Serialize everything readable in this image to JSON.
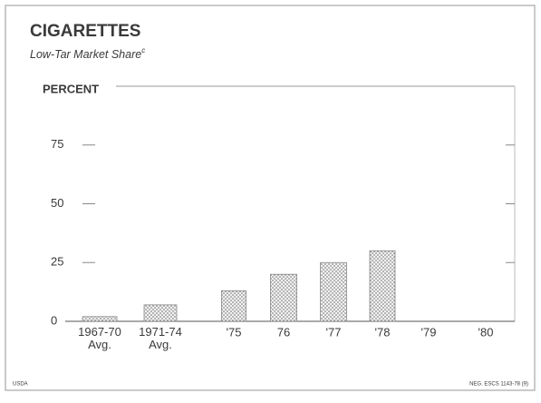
{
  "chart_data": {
    "type": "bar",
    "title": "CIGARETTES",
    "subtitle": "Low-Tar Market Share",
    "subtitle_note": "c",
    "y_axis_label": "PERCENT",
    "categories": [
      "1967-70 Avg.",
      "1971-74 Avg.",
      "'75",
      "76",
      "'77",
      "'78",
      "'79",
      "'80"
    ],
    "values": [
      2,
      7,
      13,
      20,
      25,
      30,
      null,
      null
    ],
    "color": "#6e6e6e",
    "ylim": [
      0,
      100
    ],
    "yticks": [
      0,
      25,
      50,
      75
    ],
    "grid": false,
    "footer_left": "USDA",
    "footer_right": "NEG. ESCS 1143-78 (9)"
  }
}
